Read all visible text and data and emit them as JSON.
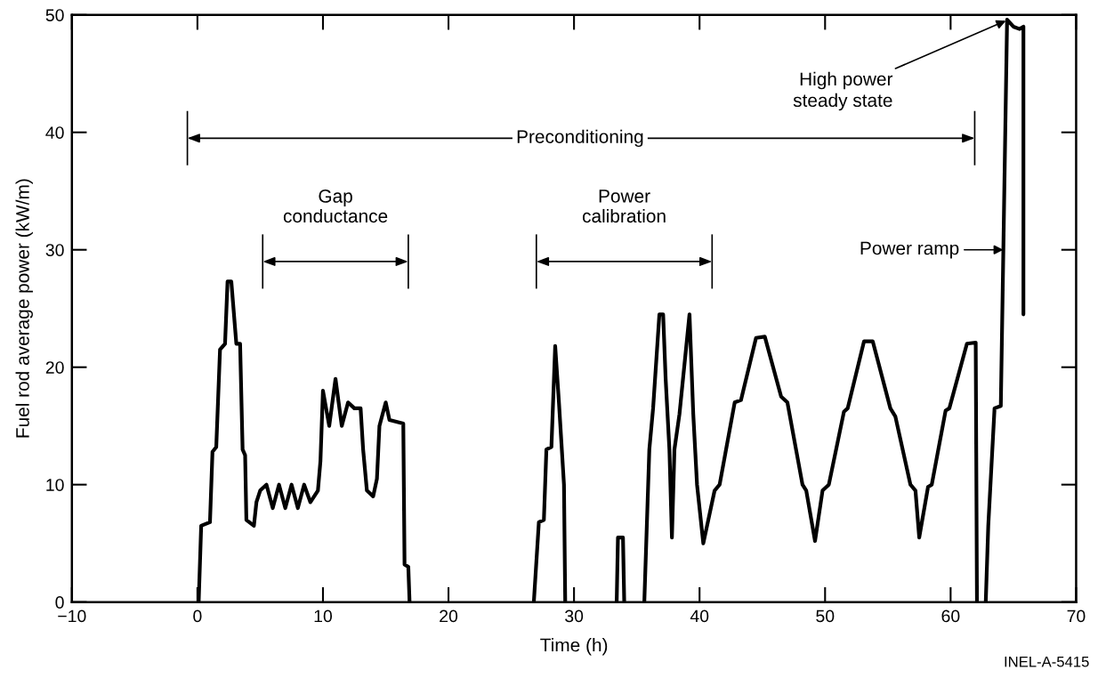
{
  "chart_data": {
    "type": "line",
    "xlabel": "Time (h)",
    "ylabel": "Fuel rod average power (kW/m)",
    "xlim": [
      -10,
      70
    ],
    "ylim": [
      0,
      50
    ],
    "xticks": [
      {
        "value": -10,
        "label": "−10"
      },
      0,
      10,
      20,
      30,
      40,
      50,
      60,
      70
    ],
    "yticks": [
      0,
      10,
      20,
      30,
      40,
      50
    ],
    "grid": false,
    "legend": false,
    "marker": "none",
    "line_style": "solid",
    "x": [
      0.1,
      0.3,
      1.0,
      1.2,
      1.5,
      1.8,
      2.2,
      2.4,
      2.7,
      3.1,
      3.4,
      3.6,
      3.8,
      3.9,
      4.5,
      4.7,
      5.0,
      5.5,
      6.0,
      6.5,
      7.0,
      7.5,
      8.0,
      8.5,
      9.0,
      9.6,
      9.8,
      10.0,
      10.5,
      11.0,
      11.5,
      12.0,
      12.5,
      13.0,
      13.2,
      13.5,
      14.0,
      14.3,
      14.5,
      15.0,
      15.3,
      16.4,
      16.5,
      16.8,
      16.9,
      22,
      26.8,
      27.2,
      27.6,
      27.8,
      28.2,
      28.5,
      28.8,
      29.2,
      29.3,
      31,
      33.4,
      33.5,
      33.9,
      34.0,
      35,
      35.6,
      36.0,
      36.3,
      36.8,
      37.1,
      37.3,
      37.6,
      37.8,
      38.0,
      38.4,
      39.2,
      39.5,
      39.8,
      40.3,
      41.2,
      41.6,
      42.8,
      43.3,
      44.5,
      45.2,
      46.5,
      47.0,
      48.2,
      48.5,
      49.2,
      49.8,
      50.3,
      51.5,
      51.8,
      53.1,
      53.8,
      55.2,
      55.6,
      56.8,
      57.2,
      57.5,
      58.2,
      58.5,
      59.6,
      59.9,
      61.3,
      62.0,
      62.1,
      62.4,
      62.8,
      63.0,
      63.3,
      63.5,
      64.0,
      64.5,
      65.0,
      65.5,
      65.8,
      65.8
    ],
    "series": [
      {
        "color": "#000000",
        "values": [
          0,
          6.5,
          6.8,
          12.8,
          13.2,
          21.5,
          22,
          27.3,
          27.3,
          22,
          22,
          13,
          12.5,
          7,
          6.5,
          8.5,
          9.5,
          10,
          8,
          10,
          8,
          10,
          8,
          10,
          8.5,
          9.5,
          12,
          18,
          15,
          19,
          15,
          17,
          16.5,
          16.5,
          13,
          9.5,
          9,
          10.5,
          15,
          17,
          15.5,
          15.2,
          3.2,
          3,
          0,
          null,
          0,
          6.8,
          7,
          13,
          13.2,
          21.8,
          17,
          10,
          0,
          null,
          0,
          5.5,
          5.5,
          0,
          null,
          0,
          13,
          16.5,
          24.5,
          24.5,
          19,
          13,
          5.5,
          13,
          16,
          24.5,
          16,
          10,
          5,
          9.5,
          10,
          17,
          17.2,
          22.5,
          22.6,
          17.5,
          17,
          10,
          9.5,
          5.2,
          9.5,
          10,
          16.2,
          16.5,
          22.2,
          22.2,
          16.5,
          15.8,
          10,
          9.5,
          5.5,
          9.8,
          10,
          16.3,
          16.5,
          22,
          22.1,
          0,
          null,
          0,
          6.5,
          12.5,
          16.5,
          16.7,
          49.6,
          49,
          48.8,
          49,
          24.5
        ]
      }
    ],
    "annotations": [
      {
        "text": "High power\nsteady state",
        "x": 64.4,
        "y": 49.5
      },
      "Preconditioning",
      "Gap\nconductance",
      "Power\ncalibration",
      {
        "text": "Power ramp",
        "x": 64.2,
        "y": 30
      },
      "INEL-A-5415"
    ]
  }
}
